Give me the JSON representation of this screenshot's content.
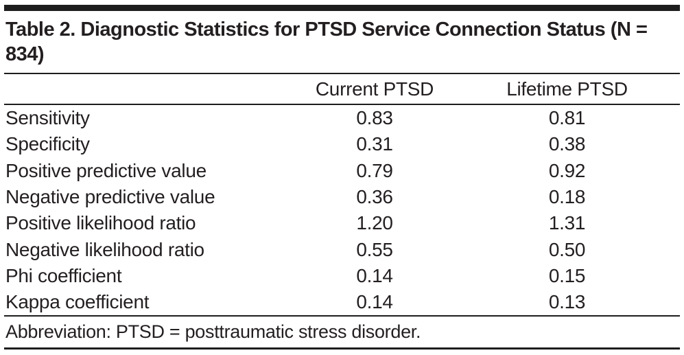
{
  "table": {
    "title": "Table 2. Diagnostic Statistics for PTSD Service Connection Status (N = 834)",
    "columns": [
      "Current PTSD",
      "Lifetime PTSD"
    ],
    "rows": [
      {
        "label": "Sensitivity",
        "current": "0.83",
        "lifetime": "0.81"
      },
      {
        "label": "Specificity",
        "current": "0.31",
        "lifetime": "0.38"
      },
      {
        "label": "Positive predictive value",
        "current": "0.79",
        "lifetime": "0.92"
      },
      {
        "label": "Negative predictive value",
        "current": "0.36",
        "lifetime": "0.18"
      },
      {
        "label": "Positive likelihood ratio",
        "current": "1.20",
        "lifetime": "1.31"
      },
      {
        "label": "Negative likelihood ratio",
        "current": "0.55",
        "lifetime": "0.50"
      },
      {
        "label": "Phi coefficient",
        "current": "0.14",
        "lifetime": "0.15"
      },
      {
        "label": "Kappa coefficient",
        "current": "0.14",
        "lifetime": "0.13"
      }
    ],
    "footnote": "Abbreviation: PTSD = posttraumatic stress disorder."
  },
  "colors": {
    "text": "#231f20",
    "rule": "#1d1d1d",
    "background": "#ffffff"
  }
}
